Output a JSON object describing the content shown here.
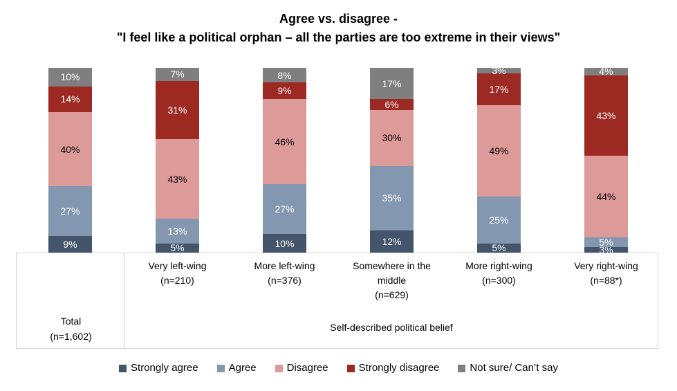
{
  "title": {
    "line1": "Agree vs. disagree -",
    "line2": "\"I feel like a political orphan – all the parties are too extreme in their views\""
  },
  "chart_data": {
    "type": "bar",
    "subtype": "100-percent-stacked-column",
    "title": "Agree vs. disagree - \"I feel like a political orphan – all the parties are too extreme in their views\"",
    "categories": [
      "Total (n=1,602)",
      "Very left-wing (n=210)",
      "More left-wing (n=376)",
      "Somewhere in the middle (n=629)",
      "More right-wing (n=300)",
      "Very right-wing (n=88*)"
    ],
    "series": [
      {
        "name": "Strongly agree",
        "color": "#44546A",
        "label_color": "#FFFFFF",
        "values": [
          9,
          5,
          10,
          12,
          5,
          3
        ]
      },
      {
        "name": "Agree",
        "color": "#8497B0",
        "label_color": "#FFFFFF",
        "values": [
          27,
          13,
          27,
          35,
          25,
          5
        ]
      },
      {
        "name": "Disagree",
        "color": "#DC9B98",
        "label_color": "#000000",
        "values": [
          40,
          43,
          46,
          30,
          49,
          44
        ]
      },
      {
        "name": "Strongly disagree",
        "color": "#9C2A23",
        "label_color": "#FFFFFF",
        "values": [
          14,
          31,
          9,
          6,
          17,
          43
        ]
      },
      {
        "name": "Not sure/ Can’t say",
        "color": "#7F7F7F",
        "label_color": "#FFFFFF",
        "values": [
          10,
          7,
          8,
          17,
          3,
          4
        ]
      }
    ],
    "value_format": "percent",
    "data_labels": "inside-center",
    "ylim": [
      0,
      100
    ],
    "grid": false,
    "legend_position": "bottom"
  },
  "x_axis": {
    "total": {
      "label": "Total",
      "n": "(n=1,602)"
    },
    "categories": [
      {
        "label": "Very left-wing",
        "n": "(n=210)"
      },
      {
        "label": "More left-wing",
        "n": "(n=376)"
      },
      {
        "label": "Somewhere in the middle",
        "n": "(n=629)"
      },
      {
        "label": "More right-wing",
        "n": "(n=300)"
      },
      {
        "label": "Very right-wing",
        "n": "(n=88*)"
      }
    ],
    "group_label": "Self-described political belief"
  },
  "legend": {
    "items": [
      "Strongly agree",
      "Agree",
      "Disagree",
      "Strongly disagree",
      "Not sure/ Can’t say"
    ]
  }
}
